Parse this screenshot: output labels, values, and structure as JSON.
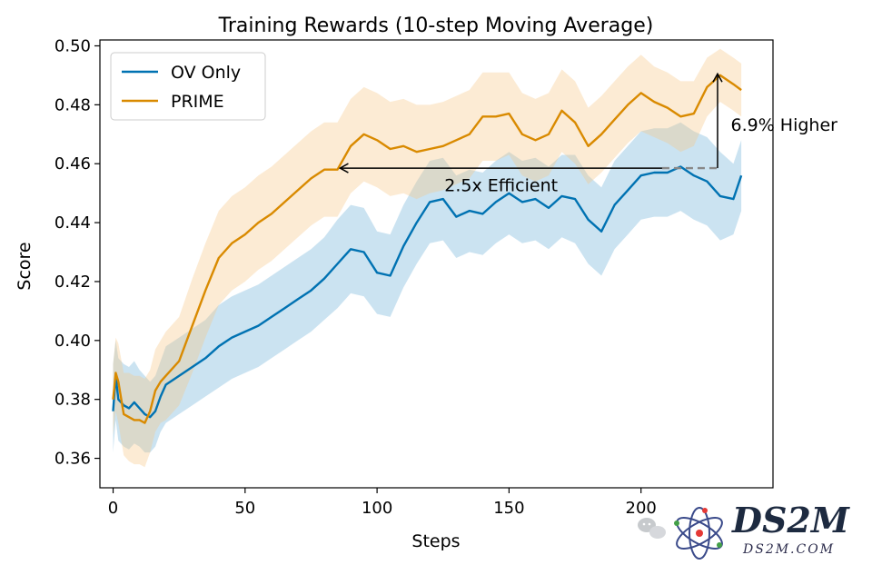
{
  "chart_data": {
    "type": "line",
    "title": "Training Rewards (10-step Moving Average)",
    "xlabel": "Steps",
    "ylabel": "Score",
    "xlim": [
      -5,
      250
    ],
    "ylim": [
      0.35,
      0.502
    ],
    "xticks": [
      0,
      50,
      100,
      150,
      200
    ],
    "xtick_labels": [
      "0",
      "50",
      "100",
      "150",
      "200"
    ],
    "yticks": [
      0.36,
      0.38,
      0.4,
      0.42,
      0.44,
      0.46,
      0.48,
      0.5
    ],
    "ytick_labels": [
      "0.36",
      "0.38",
      "0.40",
      "0.42",
      "0.44",
      "0.46",
      "0.48",
      "0.50"
    ],
    "grid": false,
    "legend_position": "top-left",
    "series": [
      {
        "name": "OV Only",
        "color": "#0072b2",
        "band_color": "#6baed6",
        "x": [
          0,
          1,
          2,
          4,
          6,
          8,
          10,
          12,
          14,
          16,
          18,
          20,
          25,
          30,
          35,
          40,
          45,
          50,
          55,
          60,
          65,
          70,
          75,
          80,
          85,
          90,
          95,
          100,
          105,
          110,
          115,
          120,
          125,
          130,
          135,
          140,
          145,
          150,
          155,
          160,
          165,
          170,
          175,
          180,
          185,
          190,
          195,
          200,
          205,
          210,
          215,
          220,
          225,
          230,
          235,
          238
        ],
        "values": [
          0.376,
          0.388,
          0.38,
          0.378,
          0.377,
          0.379,
          0.377,
          0.375,
          0.374,
          0.376,
          0.381,
          0.385,
          0.388,
          0.391,
          0.394,
          0.398,
          0.401,
          0.403,
          0.405,
          0.408,
          0.411,
          0.414,
          0.417,
          0.421,
          0.426,
          0.431,
          0.43,
          0.423,
          0.422,
          0.432,
          0.44,
          0.447,
          0.448,
          0.442,
          0.444,
          0.443,
          0.447,
          0.45,
          0.447,
          0.448,
          0.445,
          0.449,
          0.448,
          0.441,
          0.437,
          0.446,
          0.451,
          0.456,
          0.457,
          0.457,
          0.459,
          0.456,
          0.454,
          0.449,
          0.448,
          0.456
        ],
        "lower": [
          0.362,
          0.373,
          0.366,
          0.364,
          0.363,
          0.365,
          0.364,
          0.362,
          0.362,
          0.364,
          0.369,
          0.372,
          0.375,
          0.378,
          0.381,
          0.384,
          0.387,
          0.389,
          0.391,
          0.394,
          0.397,
          0.4,
          0.403,
          0.407,
          0.411,
          0.416,
          0.415,
          0.409,
          0.408,
          0.418,
          0.426,
          0.433,
          0.434,
          0.428,
          0.43,
          0.429,
          0.433,
          0.436,
          0.433,
          0.434,
          0.431,
          0.435,
          0.433,
          0.426,
          0.422,
          0.431,
          0.436,
          0.441,
          0.442,
          0.442,
          0.444,
          0.441,
          0.439,
          0.434,
          0.436,
          0.444
        ],
        "upper": [
          0.392,
          0.4,
          0.394,
          0.392,
          0.391,
          0.393,
          0.39,
          0.388,
          0.386,
          0.388,
          0.393,
          0.398,
          0.401,
          0.404,
          0.407,
          0.412,
          0.415,
          0.417,
          0.419,
          0.422,
          0.425,
          0.428,
          0.431,
          0.435,
          0.441,
          0.446,
          0.445,
          0.437,
          0.436,
          0.446,
          0.454,
          0.461,
          0.462,
          0.456,
          0.458,
          0.457,
          0.461,
          0.464,
          0.461,
          0.462,
          0.459,
          0.463,
          0.463,
          0.456,
          0.452,
          0.461,
          0.466,
          0.471,
          0.472,
          0.472,
          0.474,
          0.471,
          0.469,
          0.464,
          0.46,
          0.468
        ]
      },
      {
        "name": "PRIME",
        "color": "#d98a00",
        "band_color": "#f6c784",
        "x": [
          0,
          1,
          2,
          4,
          6,
          8,
          10,
          12,
          14,
          16,
          18,
          20,
          25,
          30,
          35,
          40,
          45,
          50,
          55,
          60,
          65,
          70,
          75,
          80,
          85,
          90,
          95,
          100,
          105,
          110,
          115,
          120,
          125,
          130,
          135,
          140,
          145,
          150,
          155,
          160,
          165,
          170,
          175,
          180,
          185,
          190,
          195,
          200,
          205,
          210,
          215,
          220,
          225,
          230,
          235,
          238
        ],
        "values": [
          0.38,
          0.389,
          0.386,
          0.375,
          0.374,
          0.373,
          0.373,
          0.372,
          0.376,
          0.383,
          0.386,
          0.388,
          0.393,
          0.405,
          0.417,
          0.428,
          0.433,
          0.436,
          0.44,
          0.443,
          0.447,
          0.451,
          0.455,
          0.458,
          0.458,
          0.466,
          0.47,
          0.468,
          0.465,
          0.466,
          0.464,
          0.465,
          0.466,
          0.468,
          0.47,
          0.476,
          0.476,
          0.477,
          0.47,
          0.468,
          0.47,
          0.478,
          0.474,
          0.466,
          0.47,
          0.475,
          0.48,
          0.484,
          0.481,
          0.479,
          0.476,
          0.477,
          0.486,
          0.49,
          0.487,
          0.485
        ],
        "lower": [
          0.368,
          0.376,
          0.372,
          0.361,
          0.359,
          0.358,
          0.358,
          0.357,
          0.362,
          0.369,
          0.372,
          0.373,
          0.378,
          0.389,
          0.401,
          0.412,
          0.417,
          0.42,
          0.424,
          0.427,
          0.431,
          0.435,
          0.439,
          0.442,
          0.442,
          0.45,
          0.454,
          0.452,
          0.449,
          0.45,
          0.448,
          0.45,
          0.451,
          0.453,
          0.455,
          0.461,
          0.461,
          0.463,
          0.456,
          0.454,
          0.456,
          0.464,
          0.46,
          0.453,
          0.457,
          0.462,
          0.467,
          0.471,
          0.469,
          0.467,
          0.464,
          0.466,
          0.476,
          0.481,
          0.478,
          0.476
        ],
        "upper": [
          0.392,
          0.401,
          0.399,
          0.389,
          0.389,
          0.388,
          0.388,
          0.387,
          0.39,
          0.397,
          0.4,
          0.403,
          0.408,
          0.421,
          0.433,
          0.444,
          0.449,
          0.452,
          0.456,
          0.459,
          0.463,
          0.467,
          0.471,
          0.474,
          0.474,
          0.482,
          0.486,
          0.484,
          0.481,
          0.482,
          0.48,
          0.48,
          0.481,
          0.483,
          0.485,
          0.491,
          0.491,
          0.491,
          0.484,
          0.482,
          0.484,
          0.492,
          0.488,
          0.479,
          0.483,
          0.488,
          0.493,
          0.497,
          0.493,
          0.491,
          0.488,
          0.488,
          0.496,
          0.499,
          0.496,
          0.494
        ]
      }
    ],
    "annotations": [
      {
        "name": "efficiency",
        "text": "2.5x Efficient",
        "arrow_from": [
          208,
          0.4585
        ],
        "arrow_to": [
          86,
          0.4585
        ],
        "text_at": [
          147,
          0.4525
        ]
      },
      {
        "name": "higher",
        "text": "6.9% Higher",
        "arrow_from": [
          229,
          0.4585
        ],
        "arrow_to": [
          229,
          0.4905
        ],
        "text_at": [
          234,
          0.473
        ]
      }
    ],
    "dashed_reference": {
      "x_from": 208,
      "x_to": 229,
      "y": 0.4585,
      "color": "#888888"
    }
  },
  "watermark": {
    "brand": "DS2M",
    "domain": "DS2M.COM"
  }
}
